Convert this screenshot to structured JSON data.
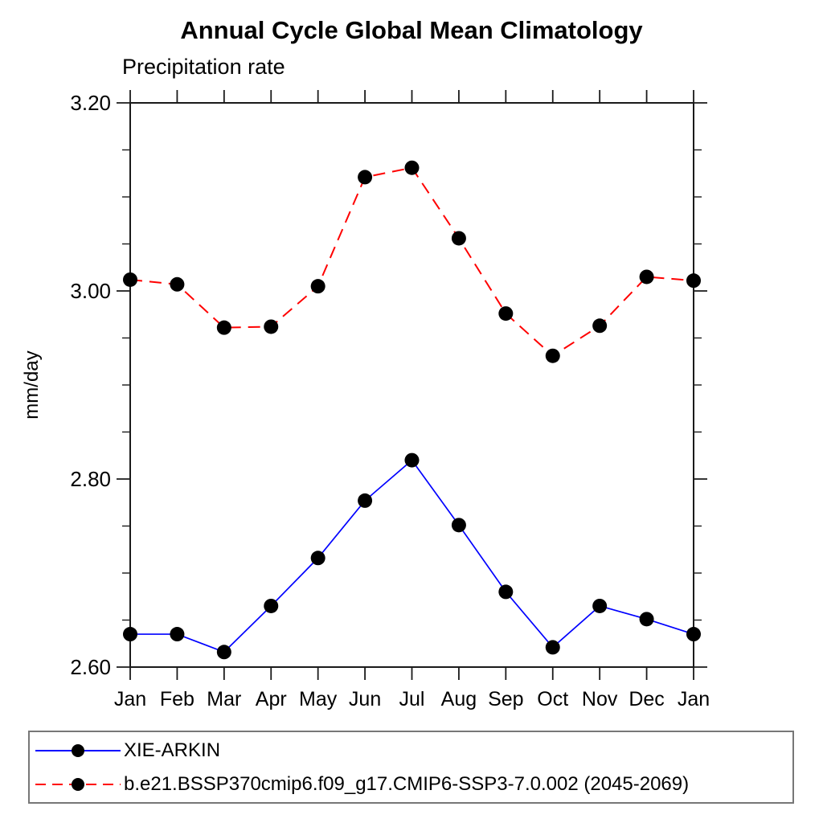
{
  "title": "Annual Cycle Global Mean Climatology",
  "subtitle": "Precipitation rate",
  "legend": {
    "items": [
      {
        "label": "XIE-ARKIN",
        "color": "#0000ff",
        "dash": "solid",
        "marker": "filled-circle"
      },
      {
        "label": "b.e21.BSSP370cmip6.f09_g17.CMIP6-SSP3-7.0.002 (2045-2069)",
        "color": "#ff0000",
        "dash": "dashed",
        "marker": "filled-circle"
      }
    ]
  },
  "colors": {
    "series1": "#0000ff",
    "series2": "#ff0000",
    "marker": "#000000",
    "axis": "#1a1a1a",
    "text": "#000000"
  },
  "chart_data": {
    "type": "line",
    "title": "Annual Cycle Global Mean Climatology",
    "subtitle": "Precipitation rate",
    "xlabel": "",
    "ylabel": "mm/day",
    "x_categories": [
      "Jan",
      "Feb",
      "Mar",
      "Apr",
      "May",
      "Jun",
      "Jul",
      "Aug",
      "Sep",
      "Oct",
      "Nov",
      "Dec",
      "Jan"
    ],
    "ylim": [
      2.6,
      3.2
    ],
    "yticks_major": [
      2.6,
      2.8,
      3.0,
      3.2
    ],
    "ytick_minor_step": 0.05,
    "grid": false,
    "legend_position": "bottom",
    "marker": "filled-circle",
    "series": [
      {
        "name": "XIE-ARKIN",
        "color": "#0000ff",
        "style": "solid",
        "values": [
          2.635,
          2.635,
          2.616,
          2.665,
          2.716,
          2.777,
          2.82,
          2.751,
          2.68,
          2.621,
          2.665,
          2.651,
          2.635
        ]
      },
      {
        "name": "b.e21.BSSP370cmip6.f09_g17.CMIP6-SSP3-7.0.002 (2045-2069)",
        "color": "#ff0000",
        "style": "dashed",
        "values": [
          3.012,
          3.007,
          2.961,
          2.962,
          3.005,
          3.121,
          3.131,
          3.056,
          2.976,
          2.931,
          2.963,
          3.015,
          3.011
        ]
      }
    ]
  }
}
